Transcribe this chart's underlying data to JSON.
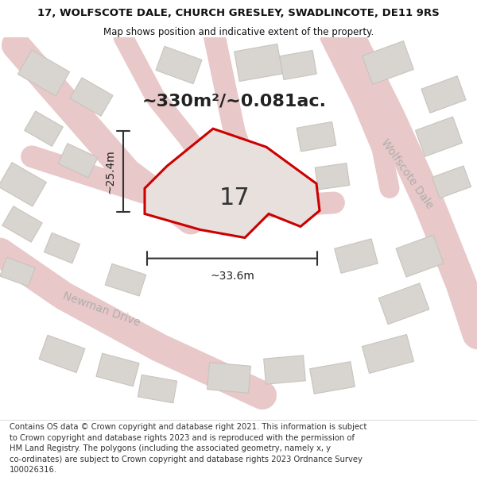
{
  "title_line1": "17, WOLFSCOTE DALE, CHURCH GRESLEY, SWADLINCOTE, DE11 9RS",
  "title_line2": "Map shows position and indicative extent of the property.",
  "area_text": "~330m²/~0.081ac.",
  "label_17": "17",
  "dim_width": "~33.6m",
  "dim_height": "~25.4m",
  "street_label1": "Wolfscote Dale",
  "street_label2": "Newman Drive",
  "footer_text": "Contains OS data © Crown copyright and database right 2021. This information is subject\nto Crown copyright and database rights 2023 and is reproduced with the permission of\nHM Land Registry. The polygons (including the associated geometry, namely x, y\nco-ordinates) are subject to Crown copyright and database rights 2023 Ordnance Survey\n100026316.",
  "map_bg": "#f0eeec",
  "road_color": "#e8c8c8",
  "building_fill": "#d8d4cf",
  "building_stroke": "#c8c4be",
  "property_fill": "#e8e0dc",
  "property_stroke": "#cc0000",
  "dim_line_color": "#333333",
  "title_color": "#111111",
  "street_text_color": "#aaaaaa",
  "footer_color": "#333333"
}
